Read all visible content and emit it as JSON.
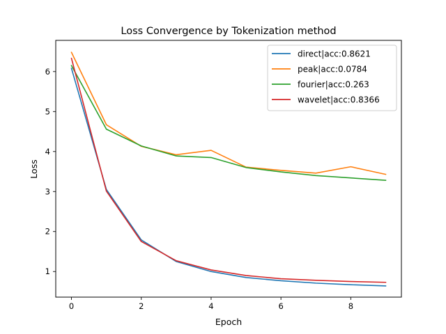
{
  "chart_data": {
    "type": "line",
    "title": "Loss Convergence by Tokenization method",
    "xlabel": "Epoch",
    "ylabel": "Loss",
    "xlim": [
      -0.45,
      9.45
    ],
    "ylim": [
      0.36,
      6.78
    ],
    "xticks": [
      0,
      2,
      4,
      6,
      8
    ],
    "yticks": [
      1,
      2,
      3,
      4,
      5,
      6
    ],
    "grid": false,
    "legend_position": "top-right",
    "x": [
      0,
      1,
      2,
      3,
      4,
      5,
      6,
      7,
      8,
      9
    ],
    "series": [
      {
        "name": "direct|acc:0.8621",
        "color": "#1f77b4",
        "values": [
          6.08,
          3.05,
          1.79,
          1.25,
          1.0,
          0.85,
          0.77,
          0.71,
          0.67,
          0.64
        ]
      },
      {
        "name": "peak|acc:0.0784",
        "color": "#ff7f0e",
        "values": [
          6.48,
          4.67,
          4.13,
          3.92,
          4.03,
          3.61,
          3.53,
          3.46,
          3.62,
          3.43
        ]
      },
      {
        "name": "fourier|acc:0.263",
        "color": "#2ca02c",
        "values": [
          6.15,
          4.56,
          4.14,
          3.89,
          3.85,
          3.6,
          3.49,
          3.4,
          3.34,
          3.28
        ]
      },
      {
        "name": "wavelet|acc:0.8366",
        "color": "#d62728",
        "values": [
          6.33,
          3.01,
          1.75,
          1.27,
          1.04,
          0.9,
          0.82,
          0.78,
          0.75,
          0.73
        ]
      }
    ]
  }
}
